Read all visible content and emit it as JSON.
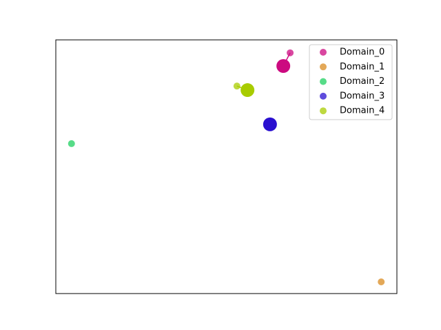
{
  "chart_data": {
    "type": "scatter",
    "xlim": [
      0,
      100
    ],
    "ylim": [
      0,
      100
    ],
    "legend": "upper right",
    "series": [
      {
        "name": "Domain_0",
        "color": "#cc0a80",
        "x": [
          68.7
        ],
        "y": [
          94.9
        ],
        "center": {
          "x": 66.7,
          "y": 89.7
        }
      },
      {
        "name": "Domain_1",
        "color": "#d98b20",
        "x": [
          95.4
        ],
        "y": [
          4.6
        ],
        "center": null
      },
      {
        "name": "Domain_2",
        "color": "#1fd060",
        "x": [
          4.6
        ],
        "y": [
          59.1
        ],
        "center": null
      },
      {
        "name": "Domain_3",
        "color": "#2a10d0",
        "x": [],
        "y": [],
        "center": {
          "x": 62.8,
          "y": 66.7
        }
      },
      {
        "name": "Domain_4",
        "color": "#a8cc00",
        "x": [
          53.1
        ],
        "y": [
          81.8
        ],
        "center": {
          "x": 56.2,
          "y": 80.2
        }
      }
    ]
  }
}
